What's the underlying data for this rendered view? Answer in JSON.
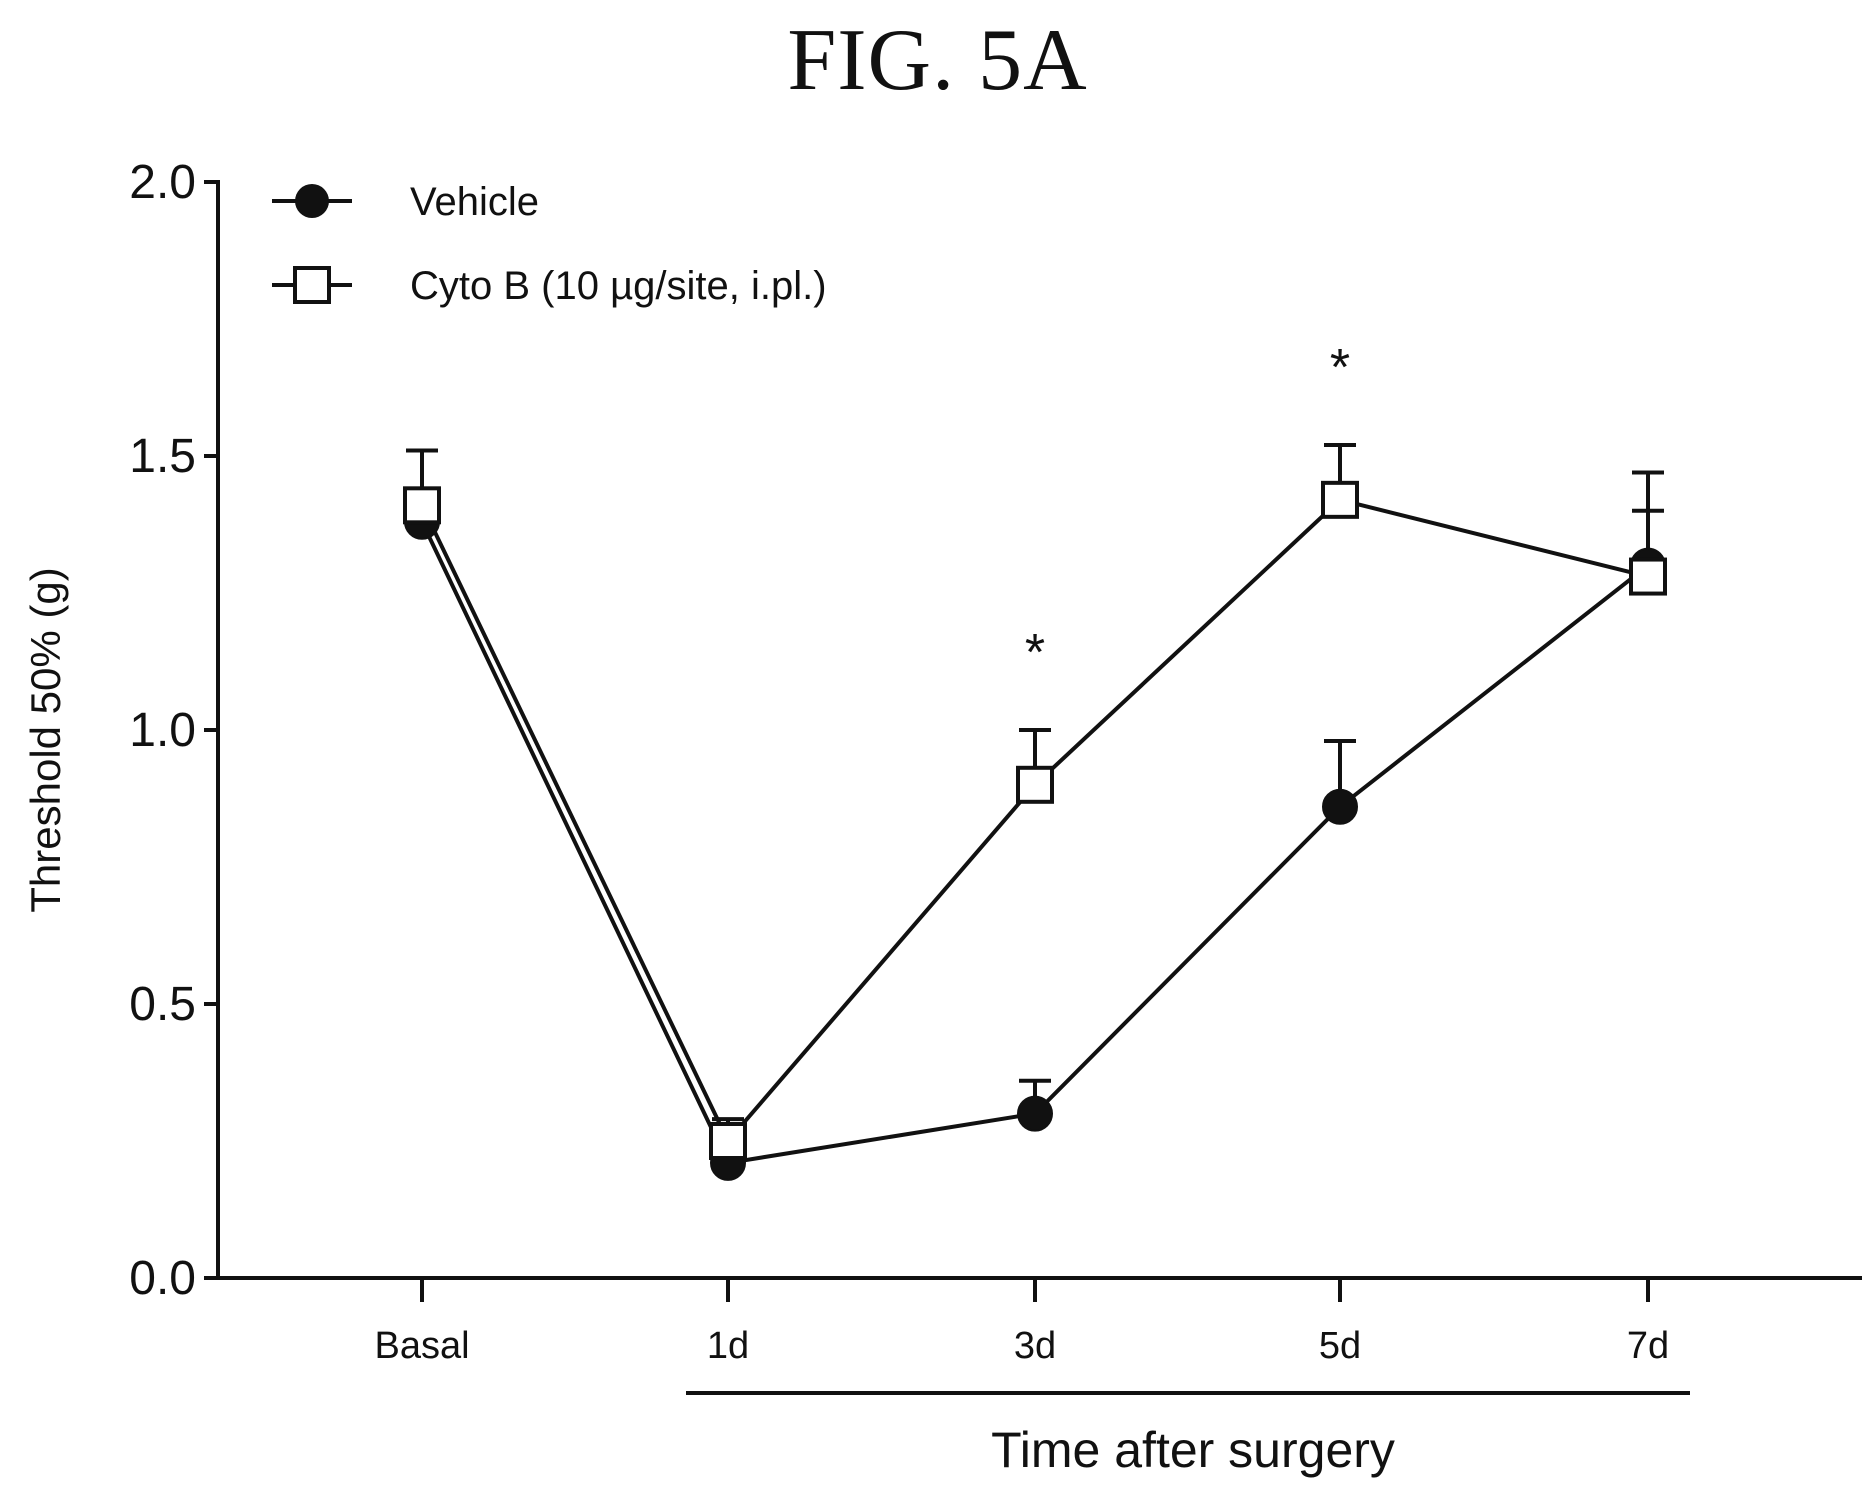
{
  "figure_title": "FIG. 5A",
  "chart_data": {
    "type": "line",
    "categories": [
      "Basal",
      "1d",
      "3d",
      "5d",
      "7d"
    ],
    "xlabel": "Time after surgery",
    "ylabel": "Threshold 50% (g)",
    "ylim": [
      0.0,
      2.0
    ],
    "yticks": [
      "0.0",
      "0.5",
      "1.0",
      "1.5",
      "2.0"
    ],
    "legend_position": "top-left",
    "series": [
      {
        "name": "Vehicle",
        "marker": "filled-circle",
        "values": [
          1.38,
          0.21,
          0.3,
          0.86,
          1.3
        ],
        "errors": [
          0.13,
          0.02,
          0.06,
          0.12,
          0.17
        ]
      },
      {
        "name": "Cyto B (10  µg/site, i.pl.)",
        "marker": "open-square",
        "values": [
          1.41,
          0.25,
          0.9,
          1.42,
          1.28
        ],
        "errors": [
          0.1,
          0.04,
          0.1,
          0.1,
          0.12
        ]
      }
    ],
    "annotations": [
      {
        "text": "*",
        "category": "3d"
      },
      {
        "text": "*",
        "category": "5d"
      }
    ]
  }
}
